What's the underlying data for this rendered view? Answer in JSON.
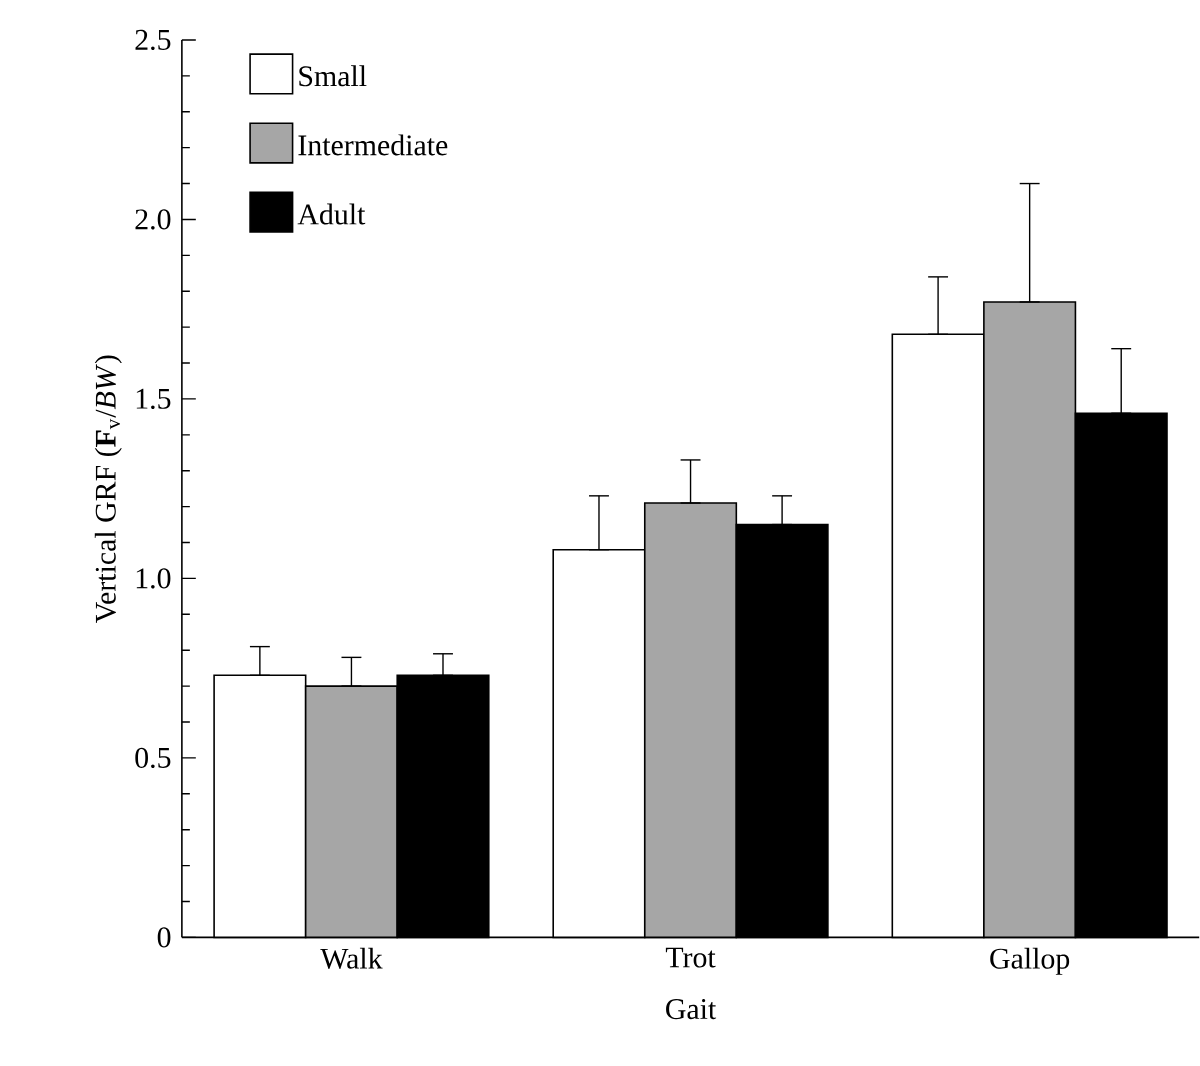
{
  "chart_data": {
    "type": "bar",
    "xlabel": "Gait",
    "ylabel": "Vertical GRF (**F**$_{v}$/*BW*)",
    "categories": [
      "Walk",
      "Trot",
      "Gallop"
    ],
    "series": [
      {
        "name": "Small",
        "color": "#ffffff",
        "values": [
          0.73,
          1.08,
          1.68
        ],
        "errors": [
          [
            0.73,
            0.81
          ],
          [
            1.08,
            1.23
          ],
          [
            1.68,
            1.84
          ]
        ]
      },
      {
        "name": "Intermediate",
        "color": "#a6a6a6",
        "values": [
          0.7,
          1.21,
          1.77
        ],
        "errors": [
          [
            0.7,
            0.78
          ],
          [
            1.21,
            1.33
          ],
          [
            1.77,
            2.1
          ]
        ]
      },
      {
        "name": "Adult",
        "color": "#000000",
        "values": [
          0.73,
          1.15,
          1.46
        ],
        "errors": [
          [
            0.73,
            0.79
          ],
          [
            1.15,
            1.23
          ],
          [
            1.46,
            1.64
          ]
        ]
      }
    ],
    "ylim": [
      0,
      2.5
    ],
    "yticks": [
      0,
      {
        "value": 0.5,
        "label": "0.5"
      },
      {
        "value": 1.0,
        "label": "1.0"
      },
      {
        "value": 1.5,
        "label": "1.5"
      },
      {
        "value": 2.0,
        "label": "2.0"
      },
      {
        "value": 2.5,
        "label": "2.5"
      }
    ],
    "legend": "top left",
    "grid": false
  }
}
